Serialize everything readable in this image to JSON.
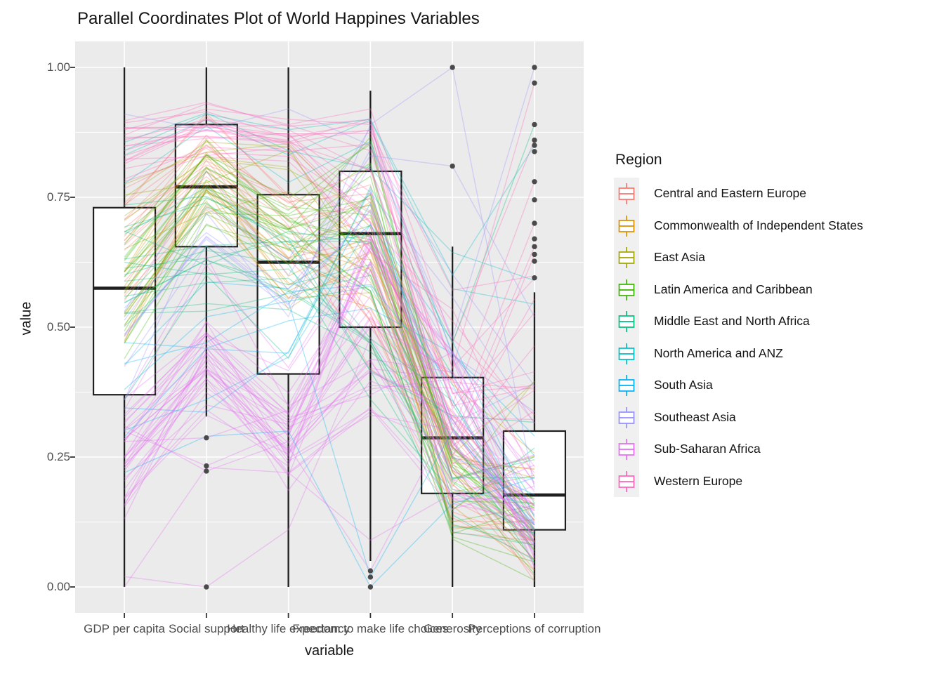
{
  "chart_data": {
    "type": "parallel-coordinates+boxplot",
    "title": "Parallel Coordinates Plot of World Happines Variables",
    "xlabel": "variable",
    "ylabel": "value",
    "ylim": [
      0,
      1
    ],
    "grid": "on",
    "legend_position": "right",
    "y_ticks": [
      "1.00",
      "0.75",
      "0.50",
      "0.25",
      "0.00"
    ],
    "y_tick_values": [
      1.0,
      0.75,
      0.5,
      0.25,
      0.0
    ],
    "y_minor_values": [
      0.875,
      0.625,
      0.375,
      0.125
    ],
    "variables": [
      "GDP per capita",
      "Social support",
      "Healthy life expectancy",
      "Freedom to make life choices",
      "Generosity",
      "Perceptions of corruption"
    ],
    "boxplots": [
      {
        "variable": "GDP per capita",
        "whisker_low": 0.0,
        "q1": 0.37,
        "median": 0.575,
        "q3": 0.73,
        "whisker_high": 1.0,
        "outliers": []
      },
      {
        "variable": "Social support",
        "whisker_low": 0.328,
        "q1": 0.655,
        "median": 0.77,
        "q3": 0.89,
        "whisker_high": 1.0,
        "outliers": [
          0.287,
          0.233,
          0.223,
          0.0
        ]
      },
      {
        "variable": "Healthy life expectancy",
        "whisker_low": 0.0,
        "q1": 0.41,
        "median": 0.625,
        "q3": 0.755,
        "whisker_high": 1.0,
        "outliers": []
      },
      {
        "variable": "Freedom to make life choices",
        "whisker_low": 0.05,
        "q1": 0.5,
        "median": 0.68,
        "q3": 0.8,
        "whisker_high": 0.955,
        "outliers": [
          0.031,
          0.019,
          0.0
        ]
      },
      {
        "variable": "Generosity",
        "whisker_low": 0.0,
        "q1": 0.18,
        "median": 0.287,
        "q3": 0.403,
        "whisker_high": 0.655,
        "outliers": [
          1.0,
          0.81
        ]
      },
      {
        "variable": "Perceptions of corruption",
        "whisker_low": 0.0,
        "q1": 0.11,
        "median": 0.177,
        "q3": 0.3,
        "whisker_high": 0.567,
        "outliers": [
          1.0,
          0.97,
          0.89,
          0.86,
          0.85,
          0.838,
          0.78,
          0.745,
          0.7,
          0.67,
          0.655,
          0.64,
          0.627,
          0.595
        ]
      }
    ],
    "legend": {
      "title": "Region",
      "entries": [
        {
          "label": "Central and Eastern Europe",
          "color": "#F8766D"
        },
        {
          "label": "Commonwealth of Independent States",
          "color": "#D89000"
        },
        {
          "label": "East Asia",
          "color": "#A3A500"
        },
        {
          "label": "Latin America and Caribbean",
          "color": "#39B600"
        },
        {
          "label": "Middle East and North Africa",
          "color": "#00BF7D"
        },
        {
          "label": "North America and ANZ",
          "color": "#00BFC4"
        },
        {
          "label": "South Asia",
          "color": "#00B0F6"
        },
        {
          "label": "Southeast Asia",
          "color": "#9590FF"
        },
        {
          "label": "Sub-Saharan Africa",
          "color": "#E76BF3"
        },
        {
          "label": "Western Europe",
          "color": "#FF62BC"
        }
      ]
    },
    "lines": {
      "alpha": 0.32,
      "width": 1.4,
      "seed": 421,
      "correlation": [
        0.8,
        0.6,
        0.7,
        0.2,
        0.1,
        0.3
      ],
      "regions": [
        {
          "name": "Central and Eastern Europe",
          "color": "#F8766D",
          "count": 16,
          "profile": [
            0.66,
            0.82,
            0.7,
            0.62,
            0.2,
            0.08
          ],
          "spread": [
            0.12,
            0.1,
            0.08,
            0.18,
            0.12,
            0.08
          ]
        },
        {
          "name": "Commonwealth of Independent States",
          "color": "#D89000",
          "count": 12,
          "profile": [
            0.55,
            0.79,
            0.6,
            0.66,
            0.26,
            0.16
          ],
          "spread": [
            0.12,
            0.08,
            0.08,
            0.15,
            0.12,
            0.12
          ]
        },
        {
          "name": "East Asia",
          "color": "#A3A500",
          "count": 6,
          "profile": [
            0.72,
            0.8,
            0.8,
            0.58,
            0.25,
            0.25
          ],
          "spread": [
            0.1,
            0.08,
            0.08,
            0.15,
            0.1,
            0.15
          ]
        },
        {
          "name": "Latin America and Caribbean",
          "color": "#39B600",
          "count": 19,
          "profile": [
            0.55,
            0.77,
            0.68,
            0.7,
            0.21,
            0.1
          ],
          "spread": [
            0.13,
            0.1,
            0.09,
            0.15,
            0.1,
            0.08
          ]
        },
        {
          "name": "Middle East and North Africa",
          "color": "#00BF7D",
          "count": 16,
          "profile": [
            0.62,
            0.66,
            0.62,
            0.52,
            0.25,
            0.18
          ],
          "spread": [
            0.15,
            0.14,
            0.1,
            0.2,
            0.12,
            0.12
          ]
        },
        {
          "name": "North America and ANZ",
          "color": "#00BFC4",
          "count": 3,
          "profile": [
            0.82,
            0.9,
            0.82,
            0.85,
            0.55,
            0.42
          ],
          "spread": [
            0.05,
            0.04,
            0.04,
            0.06,
            0.08,
            0.15
          ]
        },
        {
          "name": "South Asia",
          "color": "#00B0F6",
          "count": 6,
          "profile": [
            0.35,
            0.43,
            0.48,
            0.58,
            0.33,
            0.18
          ],
          "spread": [
            0.12,
            0.15,
            0.12,
            0.2,
            0.12,
            0.1
          ]
        },
        {
          "name": "Southeast Asia",
          "color": "#9590FF",
          "count": 6,
          "profile": [
            0.5,
            0.72,
            0.58,
            0.8,
            0.45,
            0.25
          ],
          "spread": [
            0.14,
            0.1,
            0.1,
            0.1,
            0.18,
            0.18
          ]
        },
        {
          "name": "Sub-Saharan Africa",
          "color": "#E76BF3",
          "count": 32,
          "profile": [
            0.26,
            0.46,
            0.3,
            0.54,
            0.3,
            0.14
          ],
          "spread": [
            0.14,
            0.16,
            0.12,
            0.18,
            0.13,
            0.1
          ]
        },
        {
          "name": "Western Europe",
          "color": "#FF62BC",
          "count": 15,
          "profile": [
            0.85,
            0.88,
            0.86,
            0.78,
            0.4,
            0.42
          ],
          "spread": [
            0.09,
            0.06,
            0.05,
            0.12,
            0.15,
            0.22
          ]
        }
      ],
      "feature_lines": [
        {
          "region": "Southeast Asia",
          "values": [
            0.36,
            0.72,
            0.52,
            0.89,
            1.0,
            0.19
          ]
        },
        {
          "region": "Southeast Asia",
          "values": [
            0.53,
            0.8,
            0.6,
            0.83,
            0.81,
            0.52
          ]
        },
        {
          "region": "Southeast Asia",
          "values": [
            0.91,
            0.88,
            0.92,
            0.85,
            0.48,
            1.0
          ]
        },
        {
          "region": "Western Europe",
          "values": [
            0.88,
            0.92,
            0.9,
            0.89,
            0.42,
            0.97
          ]
        },
        {
          "region": "Western Europe",
          "values": [
            0.87,
            0.93,
            0.89,
            0.92,
            0.47,
            0.86
          ]
        },
        {
          "region": "Western Europe",
          "values": [
            0.86,
            0.9,
            0.88,
            0.8,
            0.35,
            0.78
          ]
        },
        {
          "region": "Western Europe",
          "values": [
            0.84,
            0.89,
            0.87,
            0.76,
            0.3,
            0.7
          ]
        },
        {
          "region": "Western Europe",
          "values": [
            0.83,
            0.88,
            0.86,
            0.74,
            0.28,
            0.655
          ]
        },
        {
          "region": "Western Europe",
          "values": [
            0.82,
            0.9,
            0.85,
            0.7,
            0.25,
            0.64
          ]
        },
        {
          "region": "North America and ANZ",
          "values": [
            0.84,
            0.91,
            0.88,
            0.9,
            0.6,
            0.85
          ]
        },
        {
          "region": "Middle East and North Africa",
          "values": [
            0.36,
            0.6,
            0.44,
            0.77,
            0.47,
            0.89
          ]
        },
        {
          "region": "South Asia",
          "values": [
            0.22,
            0.29,
            0.3,
            0.0,
            0.16,
            0.21
          ]
        },
        {
          "region": "Sub-Saharan Africa",
          "values": [
            0.02,
            0.0,
            0.11,
            0.48,
            0.23,
            0.08
          ]
        },
        {
          "region": "Sub-Saharan Africa",
          "values": [
            0.0,
            0.23,
            0.22,
            0.09,
            0.18,
            0.15
          ]
        },
        {
          "region": "Sub-Saharan Africa",
          "values": [
            0.28,
            0.287,
            0.34,
            0.56,
            0.25,
            0.12
          ]
        },
        {
          "region": "Sub-Saharan Africa",
          "values": [
            0.3,
            0.233,
            0.3,
            0.5,
            0.28,
            0.1
          ]
        },
        {
          "region": "Sub-Saharan Africa",
          "values": [
            0.31,
            0.223,
            0.28,
            0.52,
            0.26,
            0.11
          ]
        },
        {
          "region": "South Asia",
          "values": [
            0.38,
            0.52,
            0.55,
            0.019,
            0.3,
            0.12
          ]
        },
        {
          "region": "Sub-Saharan Africa",
          "values": [
            0.25,
            0.4,
            0.27,
            0.031,
            0.33,
            0.14
          ]
        }
      ]
    },
    "colors": {
      "panel_background": "#EBEBEB",
      "gridline": "#FFFFFF",
      "box_stroke": "#1F1F1F",
      "box_fill": "#FFFFFF",
      "outlier_fill": "#3C3C3C",
      "axis_tick": "#333333",
      "tick_label": "#4D4D4D",
      "text": "#141414",
      "legend_key_background": "#F0F0F0"
    }
  }
}
